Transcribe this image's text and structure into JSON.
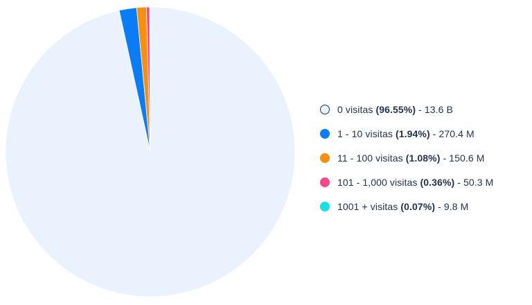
{
  "chart_data": {
    "type": "pie",
    "series": [
      {
        "label": "0 visitas",
        "percent": 96.55,
        "percent_label": "(96.55%)",
        "count_label": "13.6 B",
        "color": "#eaf2fd",
        "border": "#22324f"
      },
      {
        "label": "1 - 10 visitas",
        "percent": 1.94,
        "percent_label": "(1.94%)",
        "count_label": "270.4 M",
        "color": "#0a7cf6"
      },
      {
        "label": "11 - 100 visitas",
        "percent": 1.08,
        "percent_label": "(1.08%)",
        "count_label": "150.6 M",
        "color": "#f7900f"
      },
      {
        "label": "101 - 1,000 visitas",
        "percent": 0.36,
        "percent_label": "(0.36%)",
        "count_label": "50.3 M",
        "color": "#f5498d"
      },
      {
        "label": "1001 + visitas",
        "percent": 0.07,
        "percent_label": "(0.07%)",
        "count_label": "9.8 M",
        "color": "#17e1e4"
      }
    ],
    "legend_position": "right",
    "start_angle": "top-clockwise"
  }
}
